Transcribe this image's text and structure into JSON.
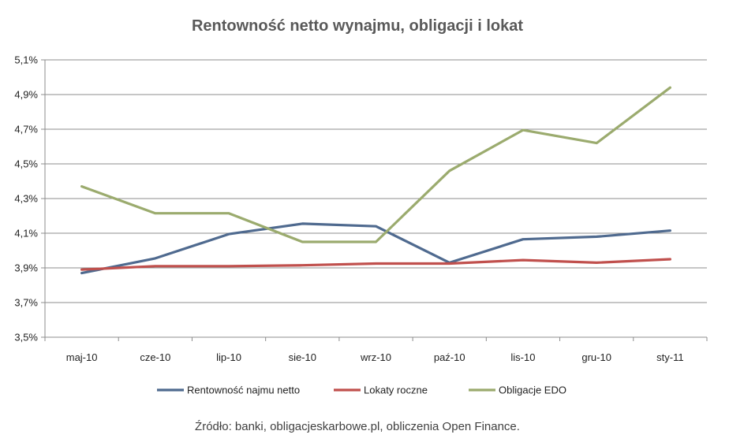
{
  "chart_data": {
    "type": "line",
    "title": "Rentowność netto wynajmu, obligacji i lokat",
    "categories": [
      "maj-10",
      "cze-10",
      "lip-10",
      "sie-10",
      "wrz-10",
      "paź-10",
      "lis-10",
      "gru-10",
      "sty-11"
    ],
    "yticks": [
      "3,5%",
      "3,7%",
      "3,9%",
      "4,1%",
      "4,3%",
      "4,5%",
      "4,7%",
      "4,9%",
      "5,1%"
    ],
    "ylim": [
      3.5,
      5.1
    ],
    "grid": true,
    "legend_position": "bottom",
    "series": [
      {
        "name": "Rentowność najmu netto",
        "color": "#4f6a8f",
        "values": [
          3.87,
          3.955,
          4.095,
          4.155,
          4.14,
          3.93,
          4.065,
          4.08,
          4.115
        ]
      },
      {
        "name": "Lokaty roczne",
        "color": "#c0504d",
        "values": [
          3.89,
          3.91,
          3.91,
          3.915,
          3.925,
          3.925,
          3.945,
          3.93,
          3.95
        ]
      },
      {
        "name": "Obligacje EDO",
        "color": "#9bab6e",
        "values": [
          4.37,
          4.215,
          4.215,
          4.05,
          4.05,
          4.46,
          4.695,
          4.62,
          4.94
        ]
      }
    ]
  },
  "source": "Źródło: banki, obligacjeskarbowe.pl, obliczenia Open Finance."
}
